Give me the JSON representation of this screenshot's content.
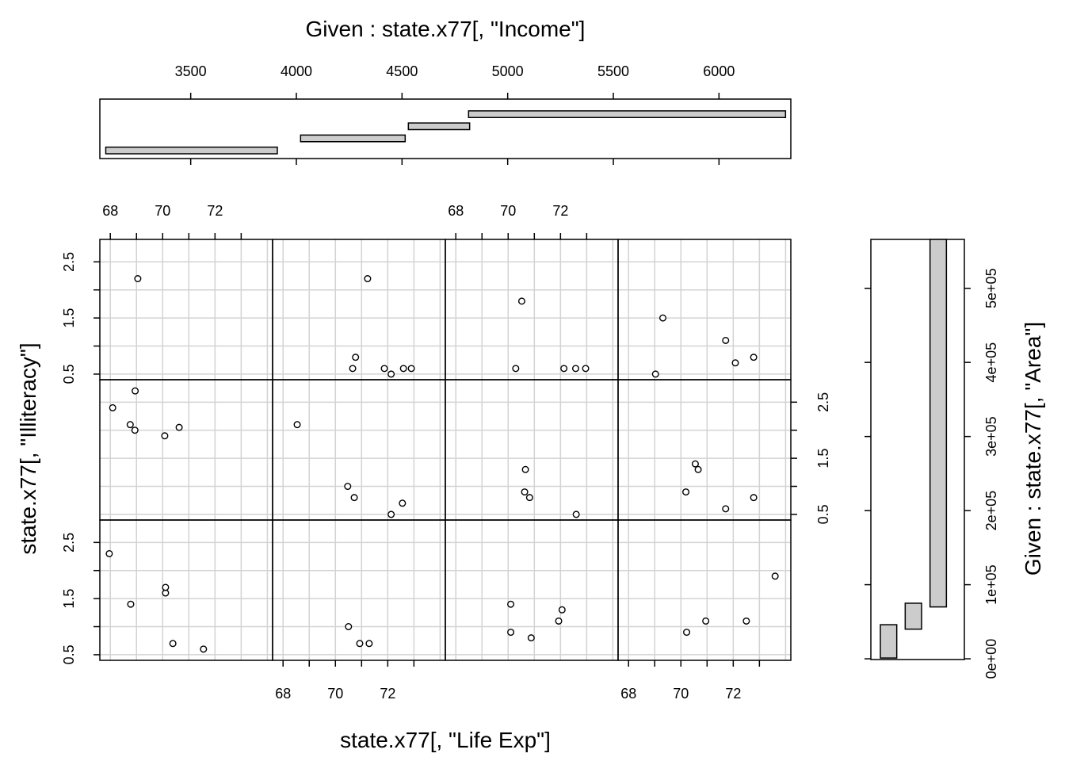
{
  "chart_data": {
    "type": "scatter",
    "xlabel": "state.x77[, \"Life Exp\"]",
    "ylabel": "state.x77[, \"Illiteracy\"]",
    "x_ticks": [
      68,
      70,
      72
    ],
    "y_ticks": [
      0.5,
      1.5,
      2.5
    ],
    "x_tick_labels": [
      "68",
      "70",
      "72"
    ],
    "y_tick_labels": [
      "0.5",
      "1.5",
      "2.5"
    ],
    "xlim": [
      67.6,
      74.2
    ],
    "ylim": [
      0.4,
      2.9
    ],
    "grid": true,
    "given_income": {
      "title": "Given : state.x77[, \"Income\"]",
      "ticks": [
        3500,
        4000,
        4500,
        5000,
        5500,
        6000
      ],
      "tick_labels": [
        "3500",
        "4000",
        "4500",
        "5000",
        "5500",
        "6000"
      ],
      "xlim": [
        3070,
        6340
      ],
      "intervals": [
        [
          3098,
          3910
        ],
        [
          4020,
          4515
        ],
        [
          4530,
          4820
        ],
        [
          4815,
          6315
        ]
      ]
    },
    "given_area": {
      "title": "Given : state.x77[, \"Area\"]",
      "ticks": [
        0,
        100000,
        200000,
        300000,
        400000,
        500000
      ],
      "tick_labels": [
        "0e+00",
        "1e+05",
        "2e+05",
        "3e+05",
        "4e+05",
        "5e+05"
      ],
      "ylim": [
        -1000,
        566000
      ],
      "intervals": [
        [
          1049,
          46000
        ],
        [
          40000,
          75000
        ],
        [
          70000,
          566000
        ]
      ]
    },
    "panels": [
      {
        "income": 1,
        "area": 1,
        "points": [
          [
            67.96,
            2.3
          ],
          [
            68.78,
            1.4
          ],
          [
            70.11,
            1.6
          ],
          [
            70.11,
            1.7
          ],
          [
            70.39,
            0.7
          ],
          [
            71.56,
            0.6
          ]
        ]
      },
      {
        "income": 2,
        "area": 1,
        "points": [
          [
            70.5,
            1.0
          ],
          [
            70.93,
            0.7
          ],
          [
            71.29,
            0.7
          ]
        ]
      },
      {
        "income": 3,
        "area": 1,
        "points": [
          [
            70.1,
            1.4
          ],
          [
            70.1,
            0.9
          ],
          [
            70.88,
            0.8
          ],
          [
            71.93,
            1.1
          ],
          [
            72.06,
            1.3
          ]
        ]
      },
      {
        "income": 4,
        "area": 1,
        "points": [
          [
            73.6,
            1.9
          ],
          [
            70.22,
            0.9
          ],
          [
            70.95,
            1.1
          ],
          [
            72.5,
            1.1
          ]
        ]
      },
      {
        "income": 1,
        "area": 2,
        "points": [
          [
            68.09,
            2.4
          ],
          [
            68.76,
            2.1
          ],
          [
            68.94,
            2.0
          ],
          [
            70.08,
            1.9
          ],
          [
            70.63,
            2.05
          ],
          [
            68.95,
            2.7
          ]
        ]
      },
      {
        "income": 2,
        "area": 2,
        "points": [
          [
            68.54,
            2.1
          ],
          [
            70.47,
            1.0
          ],
          [
            70.72,
            0.8
          ],
          [
            72.13,
            0.5
          ],
          [
            72.56,
            0.7
          ]
        ]
      },
      {
        "income": 3,
        "area": 2,
        "points": [
          [
            70.66,
            1.3
          ],
          [
            70.63,
            0.9
          ],
          [
            70.82,
            0.8
          ],
          [
            72.6,
            0.5
          ]
        ]
      },
      {
        "income": 4,
        "area": 2,
        "points": [
          [
            70.55,
            1.4
          ],
          [
            70.66,
            1.3
          ],
          [
            70.19,
            0.9
          ],
          [
            71.71,
            0.6
          ],
          [
            72.78,
            0.8
          ]
        ]
      },
      {
        "income": 1,
        "area": 3,
        "points": [
          [
            69.05,
            2.2
          ]
        ]
      },
      {
        "income": 2,
        "area": 3,
        "points": [
          [
            71.23,
            2.2
          ],
          [
            70.66,
            0.6
          ],
          [
            70.77,
            0.8
          ],
          [
            71.87,
            0.6
          ],
          [
            72.13,
            0.5
          ],
          [
            72.6,
            0.6
          ],
          [
            72.9,
            0.6
          ]
        ]
      },
      {
        "income": 3,
        "area": 3,
        "points": [
          [
            70.52,
            1.8
          ],
          [
            70.29,
            0.6
          ],
          [
            72.13,
            0.6
          ],
          [
            72.58,
            0.6
          ],
          [
            72.96,
            0.6
          ]
        ]
      },
      {
        "income": 4,
        "area": 3,
        "points": [
          [
            69.03,
            0.5
          ],
          [
            69.31,
            1.5
          ],
          [
            71.71,
            1.1
          ],
          [
            72.08,
            0.7
          ],
          [
            72.78,
            0.8
          ]
        ]
      }
    ]
  }
}
